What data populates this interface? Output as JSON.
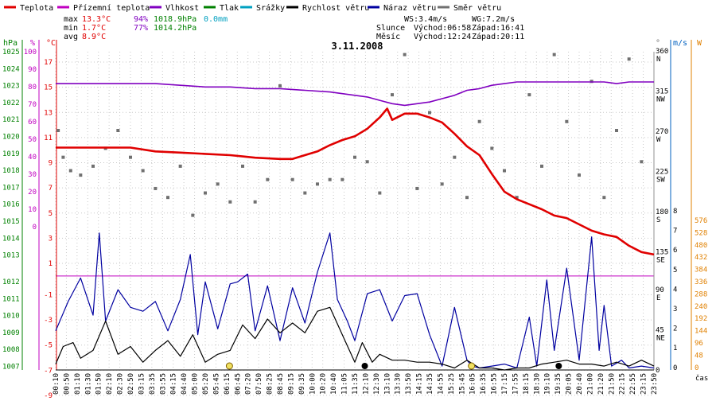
{
  "legend": [
    {
      "label": "Teplota",
      "color": "#e00000"
    },
    {
      "label": "Přízemní teplota",
      "color": "#c000c0"
    },
    {
      "label": "Vlhkost",
      "color": "#8000c0"
    },
    {
      "label": "Tlak",
      "color": "#008000"
    },
    {
      "label": "Srážky",
      "color": "#00a0c0"
    },
    {
      "label": "Rychlost větru",
      "color": "#000000"
    },
    {
      "label": "Náraz větru",
      "color": "#0000a0"
    },
    {
      "label": "Směr větru",
      "color": "#707070"
    }
  ],
  "stats": {
    "max_label": "max",
    "max_temp": "13.3°C",
    "max_hum": "94%",
    "max_press": "1018.9hPa",
    "max_rain": "0.0mm",
    "min_label": "min",
    "min_temp": "1.7°C",
    "min_hum": "77%",
    "min_press": "1014.2hPa",
    "avg_label": "avg",
    "avg_temp": "8.9°C"
  },
  "wind_stats": {
    "ws": "WS:3.4m/s",
    "wg": "WG:7.2m/s"
  },
  "sun": {
    "label": "Slunce",
    "rise": "Východ:06:58",
    "set": "Západ:16:41"
  },
  "moon": {
    "label": "Měsíc",
    "rise": "Východ:12:24",
    "set": "Západ:20:11"
  },
  "colors": {
    "temp": "#e00000",
    "humidity": "#8000c0",
    "wind_speed": "#000000",
    "wind_gust": "#0000a0",
    "wind_dir": "#707070",
    "pressure_axis": "#008000",
    "hum_axis": "#c000c0",
    "temp_axis": "#e00000",
    "ms_axis": "#0060c0",
    "w_axis": "#e08000",
    "grid": "#c8c8c8",
    "zero_line": "#c000c0"
  },
  "chart_data": {
    "type": "line",
    "title": "3.11.2008",
    "xlabel": "čas",
    "x_ticks": [
      "00:10",
      "00:50",
      "01:10",
      "01:30",
      "01:50",
      "02:10",
      "02:30",
      "02:50",
      "03:15",
      "03:35",
      "03:55",
      "04:15",
      "04:40",
      "05:00",
      "05:20",
      "05:45",
      "06:15",
      "06:45",
      "07:20",
      "07:50",
      "08:25",
      "08:45",
      "09:15",
      "09:35",
      "10:00",
      "10:20",
      "10:40",
      "11:05",
      "11:35",
      "12:10",
      "12:30",
      "13:10",
      "13:30",
      "13:50",
      "14:15",
      "14:35",
      "14:55",
      "15:25",
      "15:45",
      "16:05",
      "16:35",
      "16:55",
      "17:15",
      "17:55",
      "18:15",
      "18:30",
      "19:10",
      "19:35",
      "20:05",
      "20:40",
      "21:00",
      "21:20",
      "21:50",
      "22:15",
      "22:55",
      "23:15",
      "23:50"
    ],
    "top_axes": {
      "hpa_label": "hPa",
      "pct_label": "%",
      "degc_label": "°C",
      "deg_label": "°",
      "ms_label": "m/s",
      "w_label": "W",
      "hpa_ticks": [
        "1025",
        "1024",
        "1023",
        "1022",
        "1021",
        "1020",
        "1019",
        "1018",
        "1017",
        "1016",
        "1015",
        "1014",
        "1013"
      ],
      "pct_ticks": [
        "100",
        "90",
        "80",
        "70",
        "60",
        "50",
        "40",
        "30",
        "20",
        "10",
        "0"
      ],
      "temp_ticks": [
        "17",
        "15",
        "13",
        "11",
        "9",
        "7",
        "5",
        "3",
        "1"
      ],
      "dir_ticks": [
        "360",
        "315",
        "270",
        "225",
        "180",
        "135"
      ],
      "dir_names": [
        "N",
        "NW",
        "W",
        "SW",
        "S",
        "SE"
      ]
    },
    "bottom_axes": {
      "hpa_ticks": [
        "1012",
        "1011",
        "1010",
        "1009",
        "1008",
        "1007"
      ],
      "temp_ticks": [
        "-1",
        "-3",
        "-5",
        "-7",
        "-9"
      ],
      "dir_ticks": [
        "90",
        "45",
        "0"
      ],
      "dir_names": [
        "E",
        "NE",
        ""
      ],
      "ms_ticks": [
        "8",
        "7",
        "6",
        "5",
        "4",
        "3",
        "2",
        "1",
        "0"
      ],
      "w_ticks": [
        "576",
        "528",
        "480",
        "432",
        "384",
        "336",
        "288",
        "240",
        "192",
        "144",
        "96",
        "48",
        "0"
      ]
    },
    "y_temp_range": [
      -9,
      17
    ],
    "y_hum_range": [
      0,
      100
    ],
    "zero_temp_value": 0,
    "series": [
      {
        "name": "Teplota",
        "unit": "°C",
        "x_hours": [
          0,
          0.5,
          1,
          2,
          3,
          4,
          5,
          6,
          7,
          7.5,
          8,
          9,
          9.5,
          10,
          10.5,
          11,
          11.5,
          12,
          12.5,
          13,
          13.3,
          13.5,
          14,
          14.5,
          15,
          15.5,
          16,
          16.5,
          17,
          17.5,
          18,
          18.5,
          19,
          19.5,
          20,
          20.5,
          21,
          21.5,
          22,
          22.5,
          23,
          23.5,
          24
        ],
        "values": [
          10.2,
          10.2,
          10.2,
          10.2,
          10.2,
          9.9,
          9.8,
          9.7,
          9.6,
          9.5,
          9.4,
          9.3,
          9.3,
          9.6,
          9.9,
          10.4,
          10.8,
          11.1,
          11.7,
          12.6,
          13.3,
          12.4,
          12.9,
          12.9,
          12.6,
          12.2,
          11.3,
          10.3,
          9.6,
          8.1,
          6.7,
          6.1,
          5.7,
          5.3,
          4.8,
          4.6,
          4.1,
          3.6,
          3.3,
          3.1,
          2.4,
          1.9,
          1.7
        ]
      },
      {
        "name": "Vlhkost",
        "unit": "%",
        "x_hours": [
          0,
          1,
          2,
          3,
          4,
          5,
          6,
          7,
          8,
          9,
          10,
          11,
          11.5,
          12,
          12.5,
          13,
          13.5,
          14,
          14.5,
          15,
          15.5,
          16,
          16.5,
          17,
          17.5,
          18,
          18.5,
          19,
          20,
          21,
          22,
          22.5,
          23,
          24
        ],
        "values": [
          93,
          93,
          93,
          93,
          93,
          92,
          91,
          91,
          90,
          90,
          89,
          88,
          87,
          86,
          85,
          83,
          81,
          80,
          81,
          82,
          84,
          86,
          89,
          90,
          92,
          93,
          94,
          94,
          94,
          94,
          94,
          93,
          94,
          94
        ]
      },
      {
        "name": "Rychlost větru",
        "unit": "m/s",
        "x_hours": [
          0,
          0.3,
          0.7,
          1,
          1.5,
          2,
          2.5,
          3,
          3.5,
          4,
          4.5,
          5,
          5.5,
          6,
          6.5,
          7,
          7.5,
          8,
          8.5,
          9,
          9.5,
          10,
          10.5,
          11,
          11.5,
          12,
          12.3,
          12.7,
          13,
          13.5,
          14,
          14.5,
          15,
          15.5,
          16,
          16.5,
          17,
          17.5,
          18,
          18.5,
          19,
          19.5,
          20,
          20.5,
          21,
          21.5,
          22,
          22.5,
          23,
          23.5,
          24
        ],
        "values": [
          0.3,
          1.2,
          1.4,
          0.6,
          1.0,
          2.5,
          0.8,
          1.2,
          0.4,
          1.0,
          1.5,
          0.7,
          1.8,
          0.4,
          0.8,
          1.0,
          2.3,
          1.6,
          2.6,
          1.9,
          2.4,
          1.9,
          3.0,
          3.2,
          1.8,
          0.4,
          1.4,
          0.4,
          0.8,
          0.5,
          0.5,
          0.4,
          0.4,
          0.3,
          0.1,
          0.5,
          0.1,
          0.1,
          0,
          0.1,
          0.1,
          0.3,
          0.4,
          0.5,
          0.3,
          0.3,
          0.2,
          0.4,
          0.2,
          0.5,
          0.2
        ]
      },
      {
        "name": "Náraz větru",
        "unit": "m/s",
        "x_hours": [
          0,
          0.5,
          1,
          1.5,
          1.75,
          2,
          2.5,
          3,
          3.5,
          4,
          4.5,
          5,
          5.4,
          5.7,
          6,
          6.5,
          7,
          7.3,
          7.7,
          8,
          8.5,
          9,
          9.5,
          10,
          10.5,
          11,
          11.3,
          11.7,
          12,
          12.5,
          13,
          13.5,
          14,
          14.5,
          15,
          15.5,
          16,
          16.5,
          16.7,
          17,
          17.5,
          18,
          18.5,
          19,
          19.3,
          19.7,
          20,
          20.5,
          21,
          21.5,
          21.8,
          22,
          22.3,
          22.7,
          23,
          23.5,
          24
        ],
        "values": [
          2,
          3.5,
          4.7,
          2.8,
          7.0,
          2.5,
          4.1,
          3.2,
          3.0,
          3.5,
          2.0,
          3.6,
          5.9,
          1.8,
          4.5,
          2.1,
          4.4,
          4.5,
          4.9,
          2.0,
          4.3,
          1.5,
          4.2,
          2.4,
          5.0,
          7.0,
          3.6,
          2.5,
          1.5,
          3.9,
          4.1,
          2.5,
          3.8,
          3.9,
          1.8,
          0.2,
          3.2,
          0.5,
          0.2,
          0.1,
          0.2,
          0.3,
          0.1,
          2.7,
          0.2,
          4.6,
          1.0,
          5.2,
          0.5,
          6.8,
          1.0,
          3.3,
          0.2,
          0.5,
          0.1,
          0.2,
          0.1
        ]
      },
      {
        "name": "Směr větru",
        "unit": "°",
        "x_hours": [
          0.1,
          0.3,
          0.6,
          1,
          1.5,
          2,
          2.5,
          3,
          3.5,
          4,
          4.5,
          5,
          5.5,
          6,
          6.5,
          7,
          7.5,
          8,
          8.5,
          9,
          9.5,
          10,
          10.5,
          11,
          11.5,
          12,
          12.5,
          13,
          13.5,
          14,
          14.5,
          15,
          15.5,
          16,
          16.5,
          17,
          17.5,
          18,
          18.5,
          19,
          19.5,
          20,
          20.5,
          21,
          21.5,
          22,
          22.5,
          23,
          23.5
        ],
        "values": [
          270,
          240,
          225,
          220,
          230,
          250,
          270,
          240,
          225,
          205,
          195,
          230,
          175,
          200,
          210,
          190,
          230,
          190,
          215,
          320,
          215,
          200,
          210,
          215,
          215,
          240,
          235,
          200,
          310,
          355,
          205,
          290,
          210,
          240,
          195,
          280,
          250,
          225,
          195,
          310,
          230,
          355,
          280,
          220,
          325,
          195,
          270,
          350,
          235
        ]
      }
    ]
  }
}
